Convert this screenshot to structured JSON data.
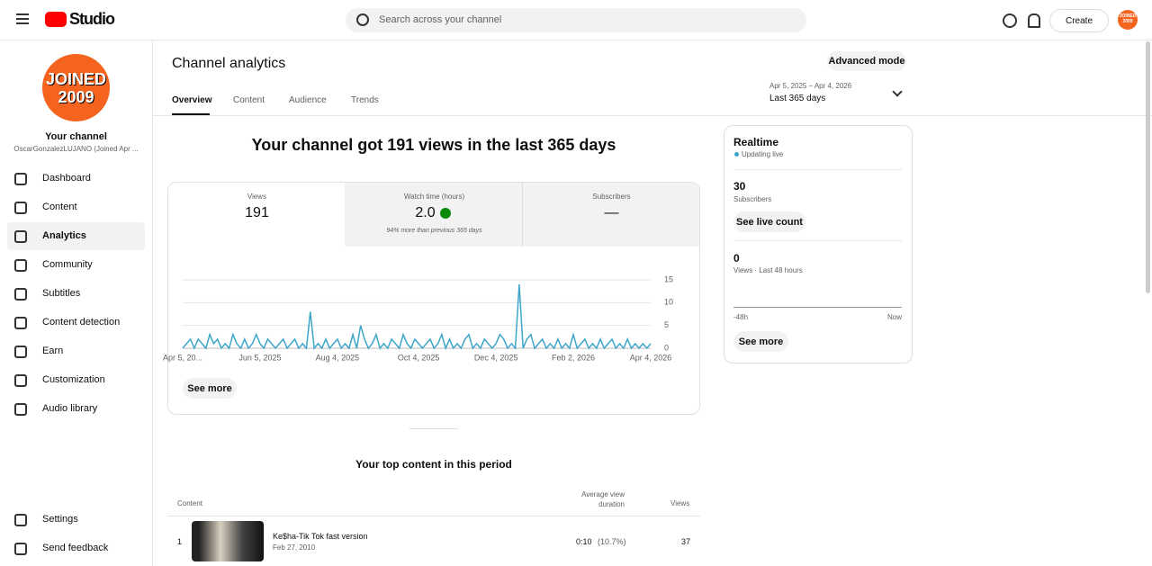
{
  "header": {
    "logo": "Studio",
    "search_placeholder": "Search across your channel",
    "create": "Create",
    "avatar": "JOINED 2009"
  },
  "sidebar": {
    "avatar_line1": "JOINED",
    "avatar_line2": "2009",
    "channel_label": "Your channel",
    "channel_handle": "OscarGonzalezLUJANO (Joined Apr ...",
    "nav": [
      "Dashboard",
      "Content",
      "Analytics",
      "Community",
      "Subtitles",
      "Content detection",
      "Earn",
      "Customization",
      "Audio library"
    ],
    "bottom": [
      "Settings",
      "Send feedback"
    ]
  },
  "main": {
    "title": "Channel analytics",
    "advanced_mode": "Advanced mode",
    "tabs": [
      "Overview",
      "Content",
      "Audience",
      "Trends"
    ],
    "date_range": "Apr 5, 2025 – Apr 4, 2026",
    "date_period": "Last 365 days",
    "headline": "Your channel got 191 views in the last 365 days",
    "metrics": [
      {
        "label": "Views",
        "value": "191"
      },
      {
        "label": "Watch time (hours)",
        "value": "2.0",
        "note": "94% more than previous 365 days"
      },
      {
        "label": "Subscribers",
        "value": "—"
      }
    ],
    "see_more": "See more",
    "top_content_title": "Your top content in this period",
    "table": {
      "headers": [
        "Content",
        "Average view duration",
        "Views"
      ],
      "rows": [
        {
          "rank": "1",
          "title": "Ke$ha-Tik Tok fast version",
          "date": "Feb 27, 2010",
          "duration": "0:10",
          "percent": "(10.7%)",
          "views": "37"
        }
      ]
    }
  },
  "realtime": {
    "title": "Realtime",
    "status": "Updating live",
    "subscribers": "30",
    "subscribers_label": "Subscribers",
    "see_live_count": "See live count",
    "views": "0",
    "views_label": "Views · Last 48 hours",
    "start": "-48h",
    "end": "Now",
    "see_more": "See more"
  },
  "chart_data": {
    "type": "line",
    "color": "#3ea6c9",
    "ylim": [
      0,
      15
    ],
    "yticks": [
      0,
      5,
      10,
      15
    ],
    "grid": true,
    "categories": [
      "Apr 5, 20...",
      null,
      null,
      null,
      null,
      null,
      null,
      null,
      null,
      null,
      null,
      null,
      null,
      null,
      null,
      null,
      null,
      null,
      null,
      null,
      "Jun 5, 2025",
      null,
      null,
      null,
      null,
      null,
      null,
      null,
      null,
      null,
      null,
      null,
      null,
      null,
      null,
      null,
      null,
      null,
      null,
      null,
      "Aug 4, 2025",
      null,
      null,
      null,
      null,
      null,
      null,
      null,
      null,
      null,
      null,
      null,
      null,
      null,
      null,
      null,
      null,
      null,
      null,
      null,
      null,
      "Oct 4, 2025",
      null,
      null,
      null,
      null,
      null,
      null,
      null,
      null,
      null,
      null,
      null,
      null,
      null,
      null,
      null,
      null,
      null,
      null,
      null,
      "Dec 4, 2025",
      null,
      null,
      null,
      null,
      null,
      null,
      null,
      null,
      null,
      null,
      null,
      null,
      null,
      null,
      null,
      null,
      null,
      null,
      null,
      "Feb 2, 2026",
      null,
      null,
      null,
      null,
      null,
      null,
      null,
      null,
      null,
      null,
      null,
      null,
      null,
      null,
      null,
      null,
      null,
      null,
      null,
      "Apr 4, 2026"
    ],
    "values": [
      0,
      1,
      2,
      0,
      2,
      1,
      0,
      3,
      1,
      2,
      0,
      1,
      0,
      3,
      1,
      0,
      2,
      0,
      1,
      3,
      1,
      0,
      2,
      1,
      0,
      1,
      2,
      0,
      1,
      2,
      0,
      1,
      0,
      8,
      0,
      1,
      0,
      2,
      0,
      1,
      2,
      0,
      1,
      0,
      3,
      0,
      5,
      2,
      0,
      1,
      3,
      0,
      1,
      0,
      2,
      1,
      0,
      3,
      1,
      0,
      2,
      1,
      0,
      1,
      2,
      0,
      1,
      3,
      0,
      2,
      0,
      1,
      0,
      2,
      3,
      0,
      1,
      0,
      2,
      1,
      0,
      1,
      3,
      2,
      0,
      1,
      0,
      14,
      0,
      2,
      3,
      0,
      1,
      2,
      0,
      1,
      0,
      2,
      0,
      1,
      0,
      3,
      0,
      1,
      2,
      0,
      1,
      0,
      2,
      0,
      1,
      2,
      0,
      1,
      0,
      2,
      0,
      1,
      0,
      1,
      0,
      1
    ]
  }
}
